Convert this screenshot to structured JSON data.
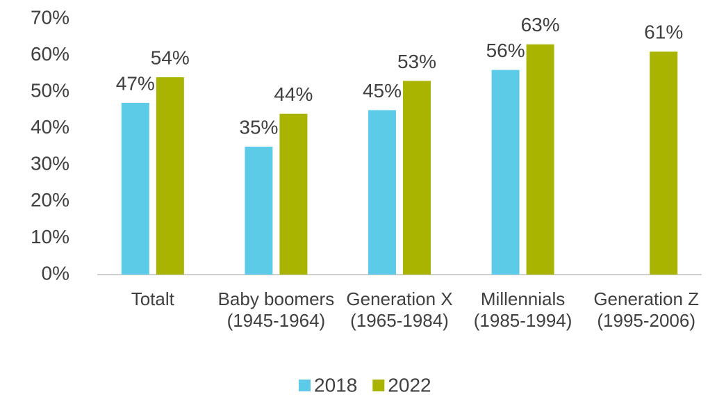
{
  "chart_data": {
    "type": "bar",
    "categories": [
      "Totalt",
      "Baby boomers (1945-1964)",
      "Generation X (1965-1984)",
      "Millennials (1985-1994)",
      "Generation Z (1995-2006)"
    ],
    "series": [
      {
        "name": "2018",
        "color": "#5bcbe8",
        "values": [
          47,
          35,
          45,
          56,
          null
        ],
        "value_labels": [
          "47%",
          "35%",
          "45%",
          "56%",
          null
        ]
      },
      {
        "name": "2022",
        "color": "#a8b400",
        "values": [
          54,
          44,
          53,
          63,
          61
        ],
        "value_labels": [
          "54%",
          "44%",
          "53%",
          "63%",
          "61%"
        ]
      }
    ],
    "ylim": [
      0,
      70
    ],
    "yticks": [
      {
        "value": 0,
        "label": "0%"
      },
      {
        "value": 10,
        "label": "10%"
      },
      {
        "value": 20,
        "label": "20%"
      },
      {
        "value": 30,
        "label": "30%"
      },
      {
        "value": 40,
        "label": "40%"
      },
      {
        "value": 50,
        "label": "50%"
      },
      {
        "value": 60,
        "label": "60%"
      },
      {
        "value": 70,
        "label": "70%"
      }
    ],
    "grid": false,
    "legend": "bottom"
  }
}
